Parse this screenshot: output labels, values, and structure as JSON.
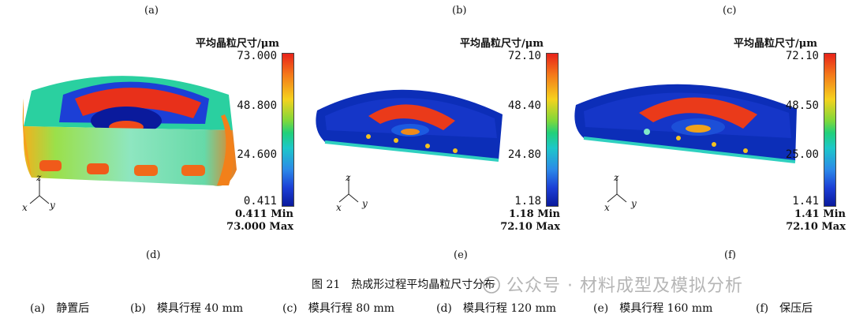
{
  "panels": [
    {
      "top": "(a)",
      "bottom": "(d)",
      "unit": "平均晶粒尺寸/μm",
      "ticks": [
        "73.000",
        "48.800",
        "24.600",
        "0.411"
      ],
      "min": "0.411 Min",
      "max": "73.000 Max"
    },
    {
      "top": "(b)",
      "bottom": "(e)",
      "unit": "平均晶粒尺寸/μm",
      "ticks": [
        "72.10",
        "48.40",
        "24.80",
        "1.18"
      ],
      "min": "1.18 Min",
      "max": "72.10 Max"
    },
    {
      "top": "(c)",
      "bottom": "(f)",
      "unit": "平均晶粒尺寸/μm",
      "ticks": [
        "72.10",
        "48.50",
        "25.00",
        "1.41"
      ],
      "min": "1.41 Min",
      "max": "72.10 Max"
    }
  ],
  "axes": {
    "z": "z",
    "x": "x",
    "y": "y"
  },
  "caption": "图 21　热成形过程平均晶粒尺寸分布",
  "sub_captions": [
    "(a)　静置后",
    "(b)　模具行程 40 mm",
    "(c)　模具行程 80 mm",
    "(d)　模具行程 120 mm",
    "(e)　模具行程 160 mm",
    "(f)　保压后"
  ],
  "watermark": "公众号 · 材料成型及模拟分析",
  "colors": {
    "max": "#e8231a",
    "mid": "#22d07a",
    "min": "#0a1a9c"
  }
}
